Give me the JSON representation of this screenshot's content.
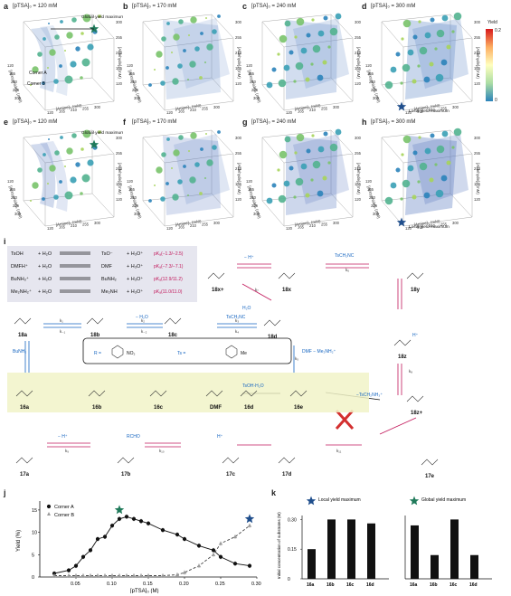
{
  "panels_3d": [
    {
      "label": "a",
      "title": "[pTSA]₀ = 120 mM",
      "note": "Global yield maximum",
      "row": 0,
      "col": 0
    },
    {
      "label": "b",
      "title": "[pTSA]₀ = 170 mM",
      "note": "",
      "row": 0,
      "col": 1
    },
    {
      "label": "c",
      "title": "[pTSA]₀ = 240 mM",
      "note": "",
      "row": 0,
      "col": 2
    },
    {
      "label": "d",
      "title": "[pTSA]₀ = 300 mM",
      "note": "Local yield maximum",
      "row": 0,
      "col": 3
    },
    {
      "label": "e",
      "title": "[pTSA]₀ = 120 mM",
      "note": "Global yield maximum",
      "row": 1,
      "col": 0
    },
    {
      "label": "f",
      "title": "[pTSA]₀ = 170 mM",
      "note": "",
      "row": 1,
      "col": 1
    },
    {
      "label": "g",
      "title": "[pTSA]₀ = 240 mM",
      "note": "",
      "row": 1,
      "col": 2
    },
    {
      "label": "h",
      "title": "[pTSA]₀ = 300 mM",
      "note": "Local yield maximum",
      "row": 1,
      "col": 3
    }
  ],
  "corner_labels": {
    "a": "Corner A",
    "b": "Corner B"
  },
  "axis_ticks": [
    "120",
    "165",
    "210",
    "255",
    "300"
  ],
  "axis_names": {
    "aldehyde": "[Aldehyde]₀ (mM)",
    "isocyanide": "[Isocyanide]₀ (mM)",
    "amine": "[Amine]₀ (mM)"
  },
  "colorbar": {
    "title": "Yield",
    "top": "0.2",
    "bottom": "0",
    "colors": [
      "#d7191c",
      "#fdae61",
      "#ffffbf",
      "#abdda4",
      "#2b83ba"
    ]
  },
  "scheme": {
    "label": "i",
    "equilibria": [
      {
        "lhs": "TsOH",
        "plus": "+",
        "water": "H₂O",
        "rhs": "TsO⁻",
        "rhs2": "H₃O⁺",
        "pka": "pKₐ(−1.3/−2.5)"
      },
      {
        "lhs": "DMFH⁺",
        "plus": "+",
        "water": "H₂O",
        "rhs": "DMF",
        "rhs2": "H₃O⁺",
        "pka": "pKₐ(−7.3/−7.1)"
      },
      {
        "lhs": "BuNH₃⁺",
        "plus": "+",
        "water": "H₂O",
        "rhs": "BuNH₂",
        "rhs2": "H₃O⁺",
        "pka": "pKₐ(12.9/11.2)"
      },
      {
        "lhs": "Me₂NH₂⁺",
        "plus": "+",
        "water": "H₂O",
        "rhs": "Me₂NH",
        "rhs2": "H₃O⁺",
        "pka": "pKₐ(11.0/11.0)"
      }
    ],
    "compounds": {
      "18a": "18a",
      "18b": "18b",
      "18c": "18c",
      "18d": "18d",
      "18e": "18e",
      "18x": "18x",
      "18x_plus": "18x+",
      "18y": "18y",
      "18z": "18z",
      "18z_plus": "18z+",
      "16a": "16a",
      "16b": "16b",
      "16c": "16c",
      "16d": "16d",
      "16e": "16e",
      "17a": "17a",
      "17b": "17b",
      "17c": "17c",
      "17d": "17d",
      "17e": "17e",
      "dmf": "DMF"
    },
    "reagents": {
      "tsch2nc": "TsCH₂NC",
      "h2o": "H₂O",
      "dmf_loss": "DMF − Me₂NH₂⁺",
      "bunh2": "BuNH₂",
      "tsoh_h2o": "TsOH·H₂O",
      "rcho": "RCHO",
      "hplus": "H⁺",
      "minus_h": "− H⁺",
      "minus_h2o": "− H₂O",
      "minus_tsch2nh3": "−TsCH₂NH₃⁺",
      "r_group": "R =",
      "ts_group": "Ts ="
    },
    "rate_labels": {
      "k1": "k₁",
      "kneg1": "k₋₁",
      "k2": "k₂",
      "kneg2": "k₋₂",
      "k3": "k₃",
      "k4": "k₄",
      "k5": "k₅",
      "k6": "k₆",
      "k7": "k₇",
      "k8": "k₈",
      "k9": "k₉",
      "k10": "k₁₀",
      "k11": "k₁₁"
    }
  },
  "panel_j": {
    "label": "j",
    "legend": [
      "Corner A",
      "Corner B"
    ],
    "xlabel": "[pTSA]₀ (M)",
    "ylabel": "Yield (%)"
  },
  "panel_k": {
    "label": "k",
    "legend_local": "Local yield maximum",
    "legend_global": "Global yield maximum",
    "ylabel": "Initial concentration of substrates (M)"
  },
  "chart_data": [
    {
      "type": "scatter",
      "x_ticks": [
        "0.05",
        "0.10",
        "0.15",
        "0.20",
        "0.25",
        "0.30"
      ],
      "y_ticks": [
        "0",
        "5",
        "10",
        "15"
      ],
      "xlim": [
        0,
        0.3
      ],
      "ylim": [
        0,
        17
      ],
      "series": [
        {
          "name": "Corner A",
          "color": "#111111",
          "x": [
            0.02,
            0.04,
            0.05,
            0.06,
            0.07,
            0.08,
            0.09,
            0.1,
            0.11,
            0.12,
            0.13,
            0.14,
            0.15,
            0.17,
            0.19,
            0.2,
            0.22,
            0.24,
            0.25,
            0.27,
            0.29
          ],
          "y": [
            0.8,
            1.5,
            2.5,
            4.5,
            6.0,
            8.5,
            9.0,
            11.5,
            13.0,
            13.5,
            13.0,
            12.5,
            12.0,
            10.5,
            9.5,
            8.5,
            7.0,
            6.0,
            4.5,
            3.0,
            2.5
          ]
        },
        {
          "name": "Corner B",
          "color": "#999999",
          "x": [
            0.02,
            0.04,
            0.05,
            0.06,
            0.07,
            0.08,
            0.09,
            0.1,
            0.11,
            0.12,
            0.13,
            0.14,
            0.15,
            0.17,
            0.19,
            0.2,
            0.22,
            0.24,
            0.25,
            0.27,
            0.29
          ],
          "y": [
            0.3,
            0.3,
            0.3,
            0.3,
            0.3,
            0.3,
            0.3,
            0.3,
            0.3,
            0.3,
            0.3,
            0.3,
            0.3,
            0.3,
            0.5,
            1.0,
            2.5,
            5.0,
            7.5,
            9.0,
            11.5
          ]
        }
      ],
      "markers": [
        {
          "x": 0.11,
          "y": 15.0,
          "kind": "global",
          "color": "#1f7a5a"
        },
        {
          "x": 0.29,
          "y": 13.0,
          "kind": "local",
          "color": "#1f4e8c"
        }
      ]
    },
    {
      "type": "bar",
      "y_ticks": [
        "0",
        "0.15",
        "0.30"
      ],
      "ylim": [
        0,
        0.32
      ],
      "groups": [
        {
          "name": "Local yield maximum",
          "categories": [
            "16a",
            "16b",
            "16c",
            "16d"
          ],
          "values": [
            0.15,
            0.3,
            0.3,
            0.28
          ]
        },
        {
          "name": "Global yield maximum",
          "categories": [
            "16a",
            "16b",
            "16c",
            "16d"
          ],
          "values": [
            0.27,
            0.12,
            0.3,
            0.12
          ]
        }
      ]
    }
  ]
}
